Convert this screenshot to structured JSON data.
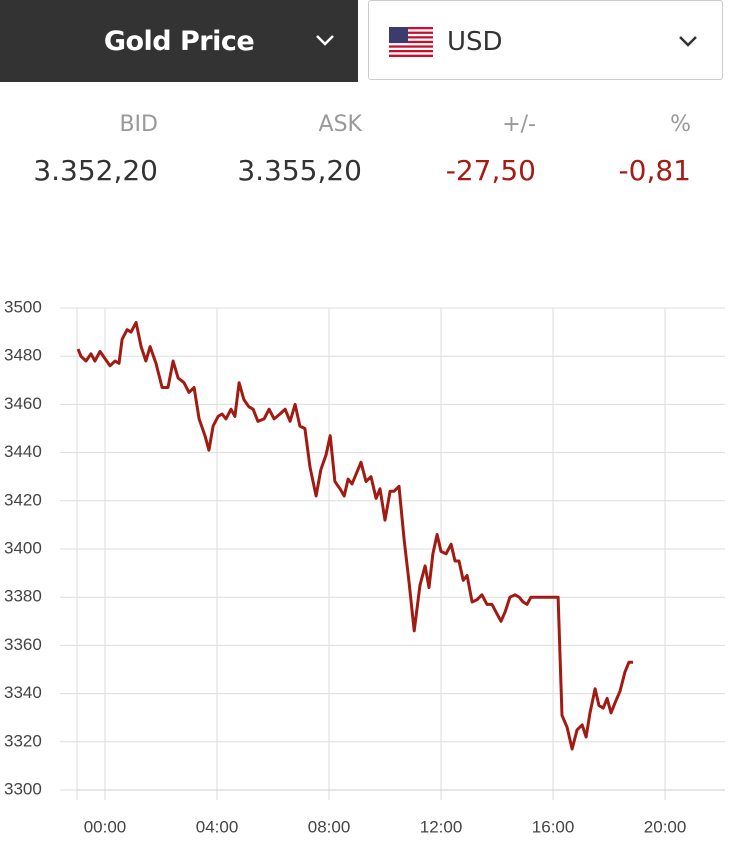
{
  "header": {
    "title": "Gold Price",
    "currency": "USD"
  },
  "quote": {
    "labels": [
      "BID",
      "ASK",
      "+/-",
      "%"
    ],
    "values": [
      "3.352,20",
      "3.355,20",
      "-27,50",
      "-0,81"
    ]
  },
  "chart_data": {
    "type": "line",
    "x": [
      -0.96,
      -0.86,
      -0.68,
      -0.5,
      -0.36,
      -0.18,
      0,
      0.18,
      0.36,
      0.5,
      0.61,
      0.79,
      0.93,
      1.11,
      1.29,
      1.46,
      1.61,
      1.82,
      2.04,
      2.25,
      2.43,
      2.61,
      2.82,
      3.0,
      3.18,
      3.36,
      3.57,
      3.71,
      3.86,
      4.04,
      4.18,
      4.32,
      4.5,
      4.64,
      4.79,
      4.96,
      5.14,
      5.29,
      5.46,
      5.68,
      5.86,
      6.04,
      6.25,
      6.43,
      6.61,
      6.79,
      6.96,
      7.14,
      7.32,
      7.54,
      7.71,
      7.89,
      8.04,
      8.21,
      8.39,
      8.54,
      8.68,
      8.82,
      9.0,
      9.14,
      9.32,
      9.5,
      9.68,
      9.82,
      10.0,
      10.18,
      10.32,
      10.5,
      10.68,
      10.86,
      11.04,
      11.25,
      11.43,
      11.57,
      11.71,
      11.86,
      12.0,
      12.18,
      12.36,
      12.5,
      12.64,
      12.79,
      12.93,
      13.11,
      13.29,
      13.46,
      13.64,
      13.82,
      14.0,
      14.14,
      14.29,
      14.46,
      14.64,
      14.79,
      14.93,
      15.07,
      15.21,
      16.18,
      16.32,
      16.5,
      16.68,
      16.86,
      17.04,
      17.18,
      17.32,
      17.5,
      17.64,
      17.79,
      17.93,
      18.07,
      18.21,
      18.39,
      18.57,
      18.71,
      18.86
    ],
    "series": [
      {
        "color": "#a11b12",
        "values": [
          3483,
          3480,
          3478,
          3481,
          3478,
          3482,
          3479,
          3476,
          3478,
          3477,
          3487,
          3491,
          3490,
          3494,
          3484,
          3478,
          3484,
          3477,
          3467,
          3467,
          3478,
          3471,
          3469,
          3465,
          3467,
          3454,
          3447,
          3441,
          3451,
          3455,
          3456,
          3454,
          3458,
          3455,
          3469,
          3462,
          3459,
          3458,
          3453,
          3454,
          3458,
          3454,
          3456,
          3458,
          3453,
          3460,
          3451,
          3450,
          3434,
          3422,
          3433,
          3439,
          3447,
          3428,
          3425,
          3422,
          3429,
          3427,
          3432,
          3436,
          3428,
          3430,
          3421,
          3425,
          3412,
          3424,
          3424,
          3426,
          3404,
          3386,
          3366,
          3385,
          3393,
          3384,
          3398,
          3406,
          3399,
          3398,
          3402,
          3395,
          3395,
          3387,
          3389,
          3378,
          3379,
          3381,
          3377,
          3377,
          3373,
          3370,
          3374,
          3380,
          3381,
          3380,
          3378,
          3377,
          3380,
          3380,
          3331,
          3326,
          3317,
          3325,
          3327,
          3322,
          3332,
          3342,
          3335,
          3334,
          3338,
          3332,
          3336,
          3341,
          3349,
          3353,
          3353
        ]
      }
    ],
    "xlim": [
      -1,
      22.14
    ],
    "ylim": [
      3300,
      3500
    ],
    "xticks": [
      {
        "value": 0,
        "label": "00:00"
      },
      {
        "value": 4,
        "label": "04:00"
      },
      {
        "value": 8,
        "label": "08:00"
      },
      {
        "value": 12,
        "label": "12:00"
      },
      {
        "value": 16,
        "label": "16:00"
      },
      {
        "value": 20,
        "label": "20:00"
      }
    ],
    "yticks": [
      3300,
      3320,
      3340,
      3360,
      3380,
      3400,
      3420,
      3440,
      3460,
      3480,
      3500
    ],
    "grid": true
  }
}
